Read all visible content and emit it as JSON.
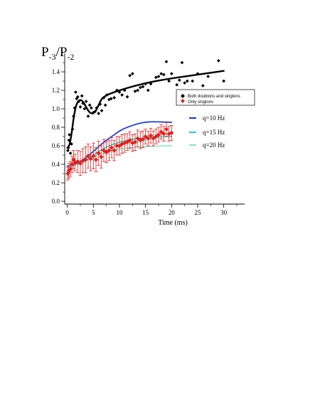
{
  "chart_data": {
    "type": "scatter",
    "title": "",
    "ylabel_main": "P",
    "ylabel_sub1": "-3",
    "ylabel_mid": "/P",
    "ylabel_sub2": "-2",
    "xlabel": "Time (ms)",
    "xlim": [
      -0.5,
      34
    ],
    "ylim": [
      -0.03,
      1.6
    ],
    "xticks": [
      0,
      5,
      10,
      15,
      20,
      25,
      30
    ],
    "yticks": [
      0.0,
      0.2,
      0.4,
      0.6,
      0.8,
      1.0,
      1.2,
      1.4
    ],
    "xtick_labels": [
      "0",
      "5",
      "10",
      "15",
      "20",
      "25",
      "30"
    ],
    "ytick_labels": [
      "0.0",
      "0.2",
      "0.4",
      "0.6",
      "0.8",
      "1.0",
      "1.2",
      "1.4"
    ],
    "grid": false,
    "legend_position": "right",
    "legend_data": [
      "Both doublons and singlons",
      "Only singlons"
    ],
    "legend_models": [
      "q=10 Hz",
      "q=15 Hz",
      "q=20 Hz"
    ],
    "series": [
      {
        "name": "Both doublons and singlons",
        "kind": "points",
        "marker": "diamond",
        "color": "#000000",
        "points": [
          [
            0.1,
            0.55
          ],
          [
            0.2,
            0.58
          ],
          [
            0.3,
            0.66
          ],
          [
            0.4,
            0.72
          ],
          [
            0.6,
            0.52
          ],
          [
            0.8,
            0.62
          ],
          [
            1.0,
            0.78
          ],
          [
            1.2,
            0.92
          ],
          [
            1.4,
            1.01
          ],
          [
            1.6,
            1.18
          ],
          [
            1.8,
            1.11
          ],
          [
            2.0,
            1.13
          ],
          [
            2.2,
            1.08
          ],
          [
            2.5,
            1.02
          ],
          [
            2.8,
            1.14
          ],
          [
            3.0,
            1.06
          ],
          [
            3.3,
            1.0
          ],
          [
            3.6,
            1.08
          ],
          [
            4.0,
            0.92
          ],
          [
            4.3,
            1.04
          ],
          [
            4.6,
            1.01
          ],
          [
            5.0,
            0.96
          ],
          [
            5.3,
            0.97
          ],
          [
            5.6,
            1.01
          ],
          [
            6.0,
            0.95
          ],
          [
            6.3,
            1.05
          ],
          [
            6.6,
            0.98
          ],
          [
            7.0,
            1.12
          ],
          [
            7.3,
            1.04
          ],
          [
            7.6,
            1.15
          ],
          [
            8.0,
            1.1
          ],
          [
            8.4,
            1.11
          ],
          [
            9.0,
            1.12
          ],
          [
            9.5,
            1.2
          ],
          [
            10.0,
            1.18
          ],
          [
            10.5,
            1.15
          ],
          [
            11.0,
            1.2
          ],
          [
            11.5,
            1.13
          ],
          [
            12.0,
            1.36
          ],
          [
            12.5,
            1.38
          ],
          [
            13.0,
            1.19
          ],
          [
            13.5,
            1.2
          ],
          [
            14.0,
            1.23
          ],
          [
            14.5,
            1.24
          ],
          [
            15.0,
            1.27
          ],
          [
            15.5,
            1.2
          ],
          [
            16.0,
            1.27
          ],
          [
            17.0,
            1.34
          ],
          [
            17.5,
            1.35
          ],
          [
            18.0,
            1.38
          ],
          [
            18.5,
            1.37
          ],
          [
            19.0,
            1.51
          ],
          [
            19.5,
            1.3
          ],
          [
            20.0,
            1.38
          ],
          [
            21.0,
            1.26
          ],
          [
            21.5,
            1.31
          ],
          [
            22.0,
            1.5
          ],
          [
            22.5,
            1.28
          ],
          [
            23.0,
            1.3
          ],
          [
            24.0,
            1.3
          ],
          [
            25.0,
            1.38
          ],
          [
            26.0,
            1.25
          ],
          [
            27.0,
            1.35
          ],
          [
            29.0,
            1.52
          ],
          [
            30.0,
            1.3
          ]
        ]
      },
      {
        "name": "Only singlons",
        "kind": "points_errorbars",
        "marker": "diamond",
        "color": "#e02020",
        "points": [
          [
            0.1,
            0.3,
            0.07
          ],
          [
            0.3,
            0.33,
            0.08
          ],
          [
            0.6,
            0.35,
            0.08
          ],
          [
            0.9,
            0.4,
            0.09
          ],
          [
            1.2,
            0.45,
            0.1
          ],
          [
            1.5,
            0.42,
            0.09
          ],
          [
            2.0,
            0.43,
            0.12
          ],
          [
            2.5,
            0.41,
            0.13
          ],
          [
            3.0,
            0.44,
            0.13
          ],
          [
            3.5,
            0.45,
            0.14
          ],
          [
            4.0,
            0.49,
            0.13
          ],
          [
            4.5,
            0.46,
            0.13
          ],
          [
            5.0,
            0.49,
            0.14
          ],
          [
            5.5,
            0.45,
            0.13
          ],
          [
            6.0,
            0.52,
            0.13
          ],
          [
            6.5,
            0.48,
            0.12
          ],
          [
            7.0,
            0.55,
            0.12
          ],
          [
            7.5,
            0.53,
            0.11
          ],
          [
            8.0,
            0.55,
            0.11
          ],
          [
            8.5,
            0.58,
            0.11
          ],
          [
            9.0,
            0.55,
            0.11
          ],
          [
            9.5,
            0.6,
            0.1
          ],
          [
            10.0,
            0.6,
            0.1
          ],
          [
            10.5,
            0.62,
            0.1
          ],
          [
            11.0,
            0.63,
            0.1
          ],
          [
            11.5,
            0.64,
            0.09
          ],
          [
            12.0,
            0.66,
            0.09
          ],
          [
            12.5,
            0.63,
            0.09
          ],
          [
            13.0,
            0.64,
            0.09
          ],
          [
            13.5,
            0.68,
            0.09
          ],
          [
            14.0,
            0.66,
            0.09
          ],
          [
            14.5,
            0.67,
            0.09
          ],
          [
            15.0,
            0.7,
            0.08
          ],
          [
            15.5,
            0.68,
            0.08
          ],
          [
            16.0,
            0.71,
            0.08
          ],
          [
            16.5,
            0.68,
            0.08
          ],
          [
            17.0,
            0.7,
            0.08
          ],
          [
            17.5,
            0.72,
            0.08
          ],
          [
            18.0,
            0.75,
            0.08
          ],
          [
            18.5,
            0.73,
            0.08
          ],
          [
            19.0,
            0.78,
            0.08
          ],
          [
            19.5,
            0.73,
            0.08
          ],
          [
            20.0,
            0.74,
            0.08
          ]
        ]
      },
      {
        "name": "",
        "kind": "line",
        "color": "#000000",
        "width": 2.4,
        "points": [
          [
            0.0,
            0.58
          ],
          [
            0.4,
            0.6
          ],
          [
            0.8,
            0.72
          ],
          [
            1.2,
            0.9
          ],
          [
            1.6,
            1.02
          ],
          [
            2.0,
            1.08
          ],
          [
            2.5,
            1.1
          ],
          [
            3.0,
            1.08
          ],
          [
            3.5,
            1.03
          ],
          [
            4.0,
            0.98
          ],
          [
            4.5,
            0.95
          ],
          [
            5.0,
            0.95
          ],
          [
            5.5,
            0.98
          ],
          [
            6.0,
            1.04
          ],
          [
            6.5,
            1.1
          ],
          [
            7.0,
            1.13
          ],
          [
            8.0,
            1.16
          ],
          [
            10.0,
            1.2
          ],
          [
            13.0,
            1.25
          ],
          [
            16.0,
            1.29
          ],
          [
            20.0,
            1.33
          ],
          [
            25.0,
            1.37
          ],
          [
            30.0,
            1.41
          ]
        ]
      },
      {
        "name": "q=10 Hz",
        "kind": "line",
        "color": "#1f3fd8",
        "width": 1.8,
        "points": [
          [
            0.0,
            0.38
          ],
          [
            1.0,
            0.39
          ],
          [
            2.0,
            0.41
          ],
          [
            3.0,
            0.45
          ],
          [
            4.0,
            0.49
          ],
          [
            5.0,
            0.54
          ],
          [
            6.0,
            0.59
          ],
          [
            7.0,
            0.64
          ],
          [
            8.0,
            0.68
          ],
          [
            9.0,
            0.72
          ],
          [
            10.0,
            0.76
          ],
          [
            11.0,
            0.79
          ],
          [
            12.0,
            0.81
          ],
          [
            13.0,
            0.83
          ],
          [
            14.0,
            0.845
          ],
          [
            15.0,
            0.855
          ],
          [
            16.0,
            0.86
          ],
          [
            17.0,
            0.86
          ],
          [
            18.0,
            0.858
          ],
          [
            19.0,
            0.855
          ],
          [
            20.0,
            0.855
          ]
        ]
      },
      {
        "name": "q=15 Hz",
        "kind": "line",
        "color": "#33cccc",
        "width": 1.6,
        "points": [
          [
            0.0,
            0.37
          ],
          [
            1.0,
            0.38
          ],
          [
            2.0,
            0.4
          ],
          [
            3.0,
            0.43
          ],
          [
            4.0,
            0.46
          ],
          [
            5.0,
            0.5
          ],
          [
            6.0,
            0.54
          ],
          [
            7.0,
            0.57
          ],
          [
            8.0,
            0.6
          ],
          [
            9.0,
            0.62
          ],
          [
            10.0,
            0.64
          ],
          [
            11.0,
            0.655
          ],
          [
            12.0,
            0.665
          ],
          [
            13.0,
            0.675
          ],
          [
            14.0,
            0.68
          ],
          [
            15.0,
            0.685
          ],
          [
            16.0,
            0.69
          ],
          [
            17.0,
            0.695
          ],
          [
            18.0,
            0.695
          ],
          [
            19.0,
            0.7
          ],
          [
            20.0,
            0.7
          ]
        ]
      },
      {
        "name": "q=20 Hz",
        "kind": "line",
        "color": "#8ee6c8",
        "width": 1.6,
        "points": [
          [
            0.0,
            0.37
          ],
          [
            1.0,
            0.38
          ],
          [
            2.0,
            0.4
          ],
          [
            3.0,
            0.42
          ],
          [
            4.0,
            0.45
          ],
          [
            5.0,
            0.48
          ],
          [
            6.0,
            0.5
          ],
          [
            7.0,
            0.52
          ],
          [
            8.0,
            0.54
          ],
          [
            9.0,
            0.555
          ],
          [
            10.0,
            0.565
          ],
          [
            11.0,
            0.575
          ],
          [
            12.0,
            0.58
          ],
          [
            13.0,
            0.585
          ],
          [
            14.0,
            0.59
          ],
          [
            15.0,
            0.59
          ],
          [
            16.0,
            0.595
          ],
          [
            17.0,
            0.595
          ],
          [
            18.0,
            0.6
          ],
          [
            19.0,
            0.6
          ],
          [
            20.0,
            0.6
          ]
        ]
      }
    ]
  }
}
